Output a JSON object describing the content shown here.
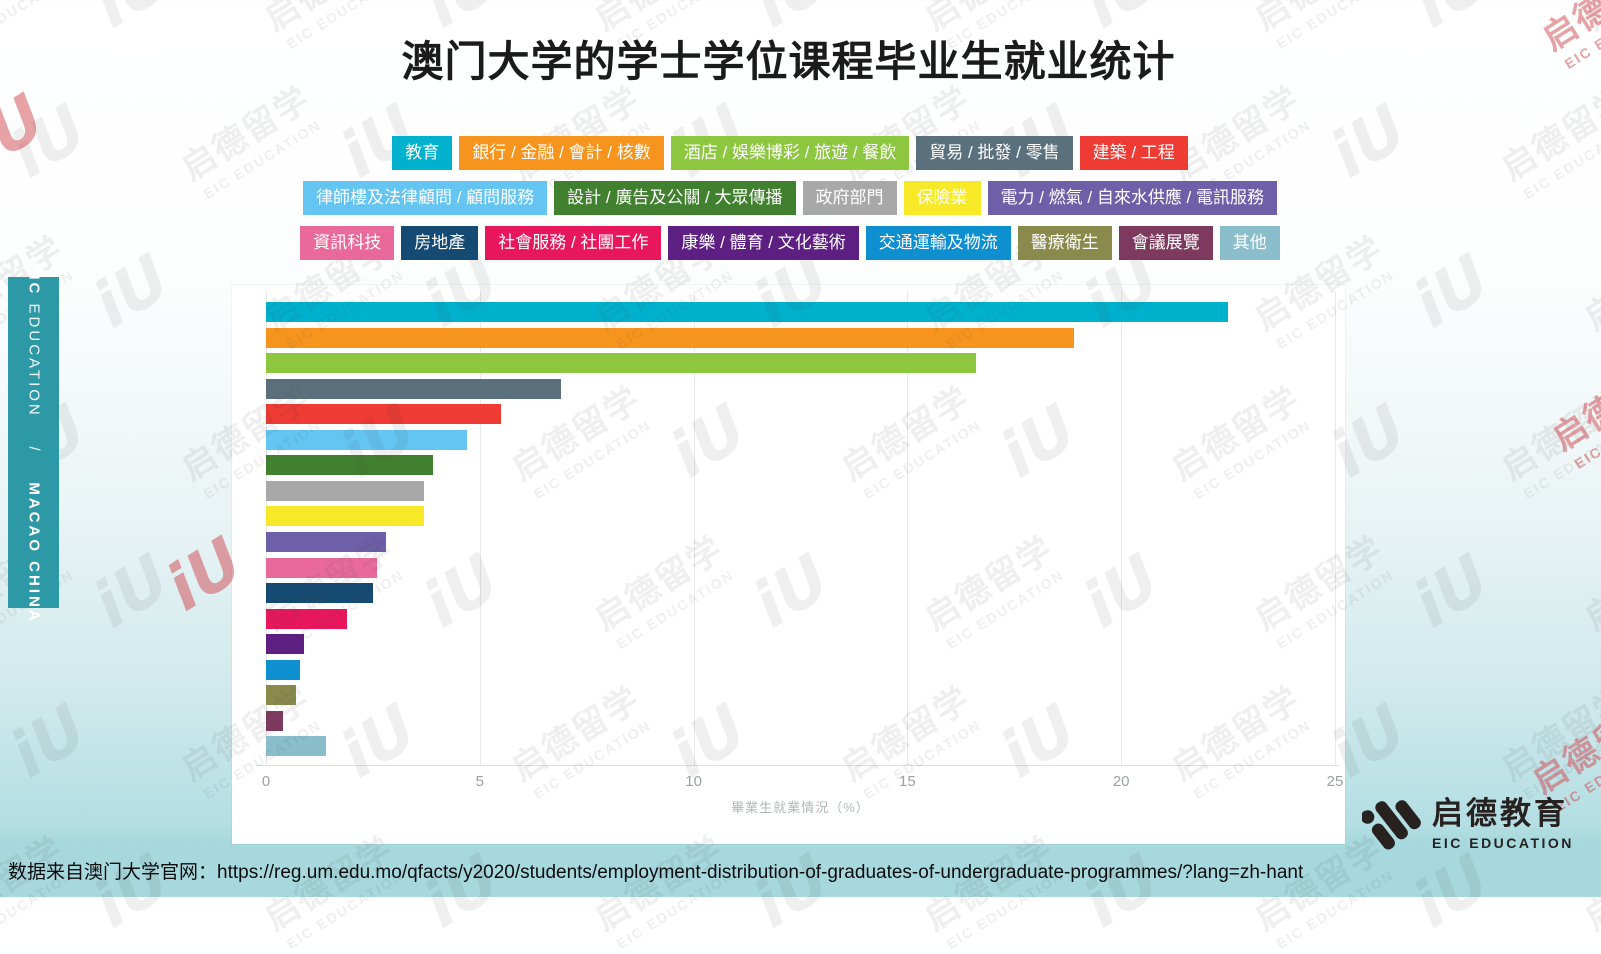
{
  "title": "澳门大学的学士学位课程毕业生就业统计",
  "sidebar": {
    "brand": "EIC",
    "brand2": "EDUCATION",
    "separator": "/",
    "region": "MACAO CHINA",
    "bg_color": "#2d99a6"
  },
  "footer": {
    "source_text": "数据来自澳门大学官网：https://reg.um.edu.mo/qfacts/y2020/students/employment-distribution-of-graduates-of-undergraduate-programmes/?lang=zh-hant",
    "bg_color": "#a6d8dd"
  },
  "logo": {
    "cn": "启德教育",
    "en": "EIC EDUCATION"
  },
  "watermark": {
    "cn": "启德留学",
    "en": "EIC EDUCATION",
    "mark": "iU"
  },
  "chart_data": {
    "type": "bar",
    "orientation": "horizontal",
    "title": "澳门大学的学士学位课程毕业生就业统计",
    "xlabel": "畢業生就業情況（%）",
    "xlim": [
      0,
      25
    ],
    "xticks": [
      "0",
      "5",
      "10",
      "15",
      "20",
      "25"
    ],
    "grid": true,
    "legend_position": "top",
    "legend_row_counts": [
      5,
      5,
      8
    ],
    "categories": [
      "教育",
      "銀行 / 金融 / 會計 / 核數",
      "酒店 / 娛樂博彩 / 旅遊 / 餐飲",
      "貿易 / 批發 / 零售",
      "建築 / 工程",
      "律師樓及法律顧問 / 顧問服務",
      "設計 / 廣告及公關 / 大眾傳播",
      "政府部門",
      "保險業",
      "電力 / 燃氣 / 自來水供應 / 電訊服務",
      "資訊科技",
      "房地產",
      "社會服務 / 社團工作",
      "康樂 / 體育 / 文化藝術",
      "交通運輸及物流",
      "醫療衛生",
      "會議展覽",
      "其他"
    ],
    "values": [
      22.5,
      18.9,
      16.6,
      6.9,
      5.5,
      4.7,
      3.9,
      3.7,
      3.7,
      2.8,
      2.6,
      2.5,
      1.9,
      0.9,
      0.8,
      0.7,
      0.4,
      1.4
    ],
    "colors": [
      "#00b1ce",
      "#f7941e",
      "#8dc63f",
      "#5b707d",
      "#ee3b33",
      "#64c5f2",
      "#41802f",
      "#a8a8a8",
      "#f7e928",
      "#6d60a8",
      "#e96a9a",
      "#154a73",
      "#e8175d",
      "#5e1f82",
      "#0e8fd0",
      "#8a8a4d",
      "#7d3a5e",
      "#8abecb"
    ]
  }
}
